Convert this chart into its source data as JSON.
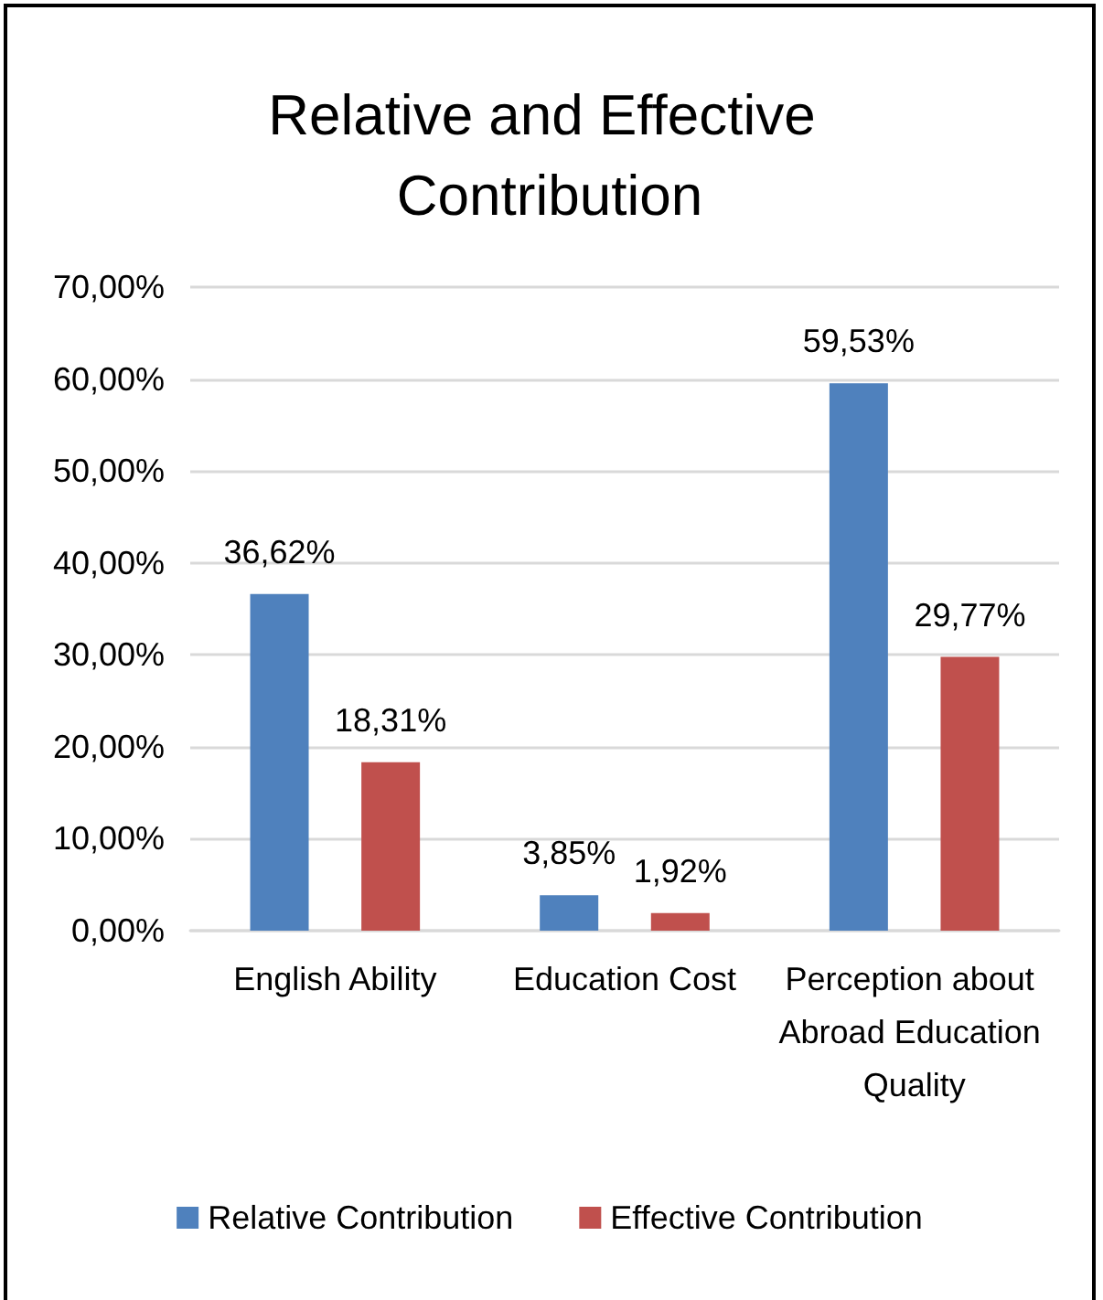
{
  "chart_data": {
    "type": "bar",
    "title": "Relative and Effective Contribution",
    "categories": [
      "English Ability",
      "Education Cost",
      "Perception about Abroad Education Quality"
    ],
    "series": [
      {
        "name": "Relative Contribution",
        "color": "#4f81bd",
        "values": [
          36.62,
          3.85,
          59.53
        ],
        "value_labels": [
          "36,62%",
          "3,85%",
          "59,53%"
        ]
      },
      {
        "name": "Effective Contribution",
        "color": "#c0504d",
        "values": [
          18.31,
          1.92,
          29.77
        ],
        "value_labels": [
          "18,31%",
          "1,92%",
          "29,77%"
        ]
      }
    ],
    "ylim": [
      0,
      70
    ],
    "yticks": [
      {
        "value": 0,
        "label": "0,00%"
      },
      {
        "value": 10,
        "label": "10,00%"
      },
      {
        "value": 20,
        "label": "20,00%"
      },
      {
        "value": 30,
        "label": "30,00%"
      },
      {
        "value": 40,
        "label": "40,00%"
      },
      {
        "value": 50,
        "label": "50,00%"
      },
      {
        "value": 60,
        "label": "60,00%"
      },
      {
        "value": 70,
        "label": "70,00%"
      }
    ],
    "grid": "y",
    "legend": "bottom"
  }
}
